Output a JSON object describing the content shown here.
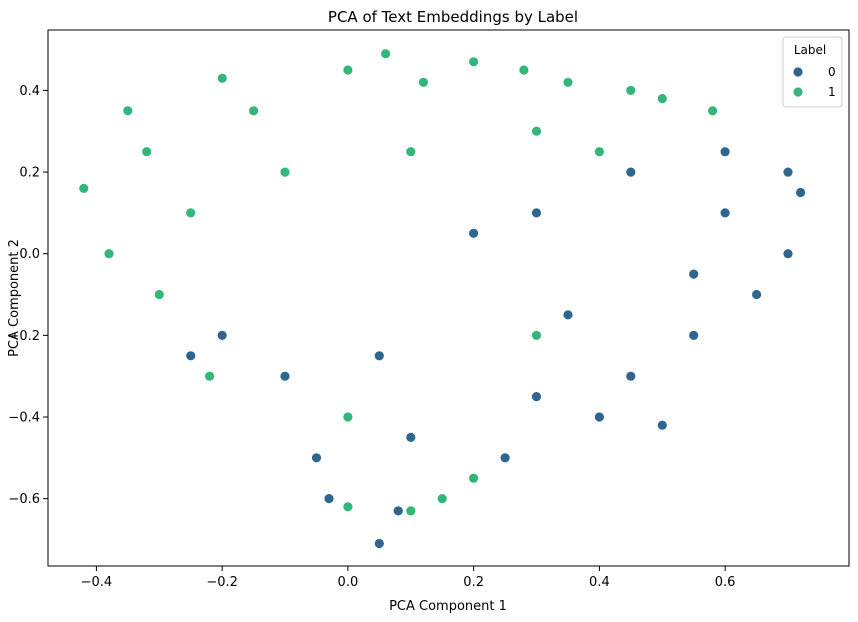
{
  "chart_data": {
    "type": "scatter",
    "title": "PCA of Text Embeddings by Label",
    "xlabel": "PCA Component 1",
    "ylabel": "PCA Component 2",
    "xlim": [
      -0.477,
      0.797
    ],
    "ylim": [
      -0.765,
      0.548
    ],
    "xticks": [
      -0.4,
      -0.2,
      0.0,
      0.2,
      0.4,
      0.6
    ],
    "xtick_labels": [
      "−0.4",
      "−0.2",
      "0.0",
      "0.2",
      "0.4",
      "0.6"
    ],
    "yticks": [
      -0.6,
      -0.4,
      -0.2,
      0.0,
      0.2,
      0.4
    ],
    "ytick_labels": [
      "−0.6",
      "−0.4",
      "−0.2",
      "0.0",
      "0.2",
      "0.4"
    ],
    "grid": false,
    "legend": {
      "title": "Label",
      "position": "top-right",
      "entries": [
        {
          "label": "0",
          "color": "#2f6690"
        },
        {
          "label": "1",
          "color": "#33b679"
        }
      ]
    },
    "series": [
      {
        "name": "0",
        "color": "#2f6690",
        "points": [
          [
            0.05,
            -0.71
          ],
          [
            0.5,
            -0.42
          ],
          [
            -0.03,
            -0.6
          ],
          [
            0.15,
            -0.6
          ],
          [
            0.25,
            -0.5
          ],
          [
            0.4,
            -0.4
          ],
          [
            0.55,
            -0.2
          ],
          [
            0.65,
            -0.1
          ],
          [
            0.7,
            0.0
          ],
          [
            0.72,
            0.15
          ],
          [
            0.7,
            0.2
          ],
          [
            0.6,
            0.25
          ],
          [
            0.45,
            0.2
          ],
          [
            0.3,
            0.1
          ],
          [
            0.2,
            0.05
          ],
          [
            -0.1,
            -0.3
          ],
          [
            -0.2,
            -0.2
          ],
          [
            -0.25,
            -0.25
          ],
          [
            0.08,
            -0.63
          ],
          [
            -0.05,
            -0.5
          ],
          [
            0.1,
            -0.45
          ],
          [
            0.3,
            -0.35
          ],
          [
            0.45,
            -0.3
          ],
          [
            0.55,
            -0.05
          ],
          [
            0.6,
            0.1
          ],
          [
            0.35,
            -0.15
          ],
          [
            0.05,
            -0.25
          ]
        ]
      },
      {
        "name": "1",
        "color": "#33b679",
        "points": [
          [
            0.06,
            0.49
          ],
          [
            -0.42,
            0.16
          ],
          [
            -0.35,
            0.35
          ],
          [
            -0.2,
            0.43
          ],
          [
            0.0,
            0.45
          ],
          [
            0.2,
            0.47
          ],
          [
            0.35,
            0.42
          ],
          [
            0.5,
            0.38
          ],
          [
            0.58,
            0.35
          ],
          [
            -0.38,
            0.0
          ],
          [
            -0.3,
            -0.1
          ],
          [
            -0.22,
            -0.3
          ],
          [
            0.1,
            -0.63
          ],
          [
            0.0,
            -0.62
          ],
          [
            0.15,
            -0.6
          ],
          [
            0.4,
            0.25
          ],
          [
            0.3,
            0.3
          ],
          [
            0.1,
            0.25
          ],
          [
            -0.1,
            0.2
          ],
          [
            -0.25,
            0.1
          ],
          [
            0.28,
            0.45
          ],
          [
            0.45,
            0.4
          ],
          [
            -0.15,
            0.35
          ],
          [
            0.12,
            0.42
          ],
          [
            -0.32,
            0.25
          ],
          [
            0.3,
            -0.2
          ],
          [
            0.0,
            -0.4
          ],
          [
            0.2,
            -0.55
          ]
        ]
      }
    ]
  }
}
